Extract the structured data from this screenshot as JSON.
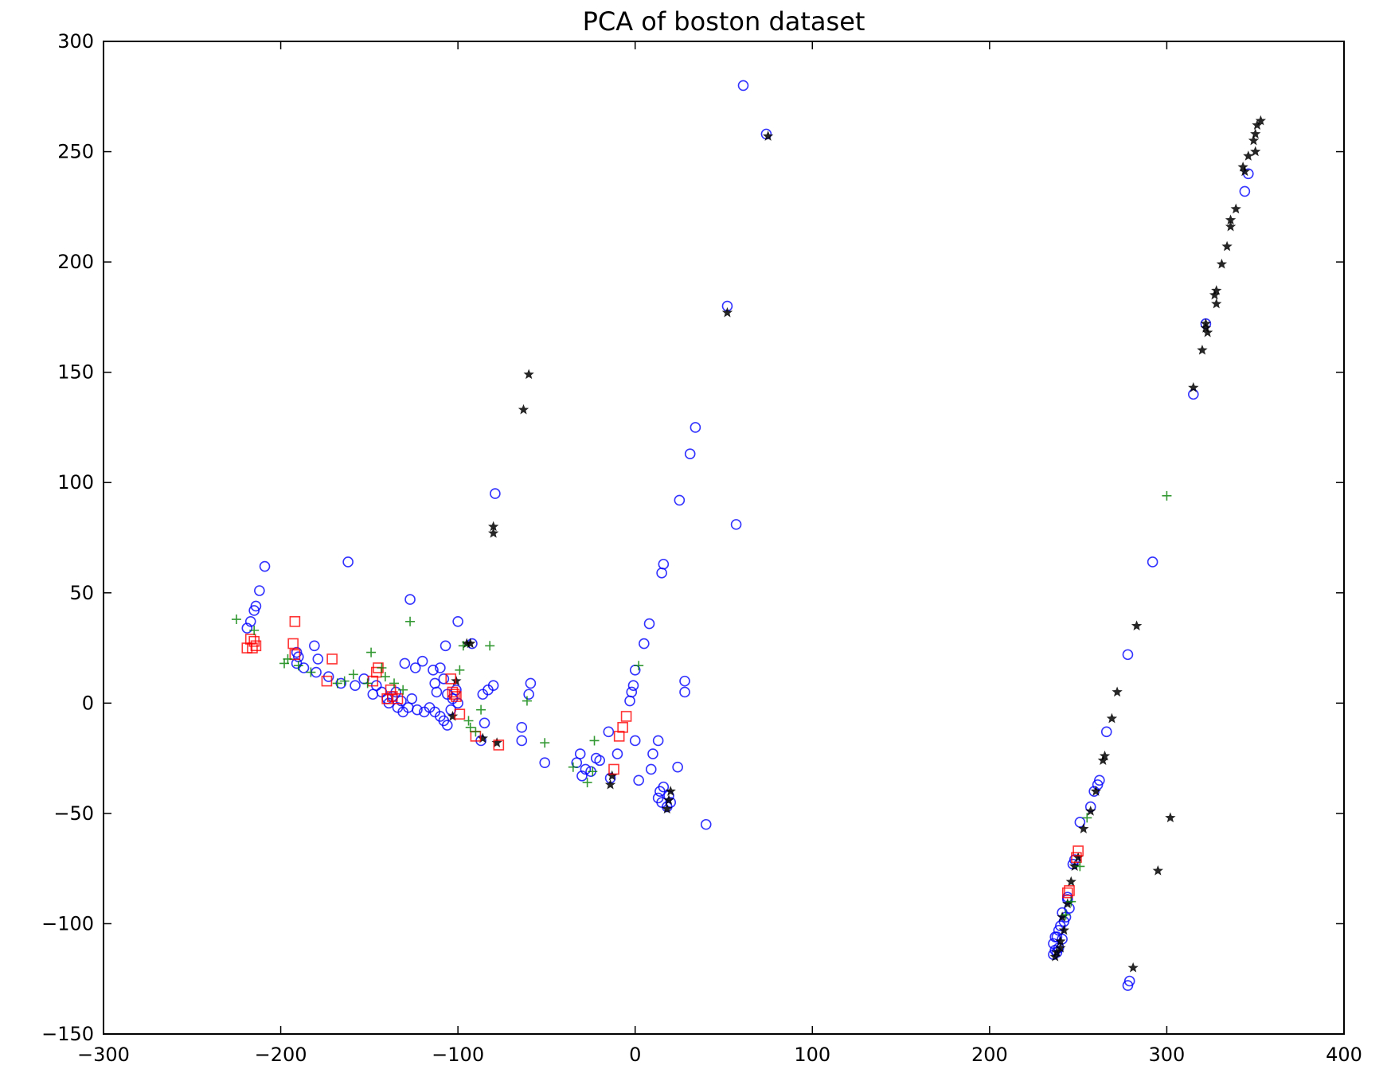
{
  "chart_data": {
    "type": "scatter",
    "title": "PCA of boston dataset",
    "xlabel": "",
    "ylabel": "",
    "xlim": [
      -300,
      400
    ],
    "ylim": [
      -150,
      300
    ],
    "xticks": [
      -300,
      -200,
      -100,
      0,
      100,
      200,
      300,
      400
    ],
    "yticks": [
      -150,
      -100,
      -50,
      0,
      50,
      100,
      150,
      200,
      250,
      300
    ],
    "xtick_labels": [
      "−300",
      "−200",
      "−100",
      "0",
      "100",
      "200",
      "300",
      "400"
    ],
    "ytick_labels": [
      "−150",
      "−100",
      "−50",
      "0",
      "50",
      "100",
      "150",
      "200",
      "250",
      "300"
    ],
    "grid": false,
    "legend": "none",
    "series": [
      {
        "marker": "circle",
        "color": "#0000ff",
        "points": [
          [
            61,
            280
          ],
          [
            74,
            258
          ],
          [
            52,
            180
          ],
          [
            34,
            125
          ],
          [
            31,
            113
          ],
          [
            25,
            92
          ],
          [
            57,
            81
          ],
          [
            16,
            63
          ],
          [
            15,
            59
          ],
          [
            8,
            36
          ],
          [
            5,
            27
          ],
          [
            0,
            15
          ],
          [
            -1,
            8
          ],
          [
            -2,
            5
          ],
          [
            -3,
            1
          ],
          [
            28,
            10
          ],
          [
            28,
            5
          ],
          [
            0,
            -17
          ],
          [
            -10,
            -23
          ],
          [
            -15,
            -13
          ],
          [
            13,
            -17
          ],
          [
            10,
            -23
          ],
          [
            9,
            -30
          ],
          [
            24,
            -29
          ],
          [
            2,
            -35
          ],
          [
            14,
            -40
          ],
          [
            13,
            -43
          ],
          [
            15,
            -45
          ],
          [
            18,
            -47
          ],
          [
            20,
            -45
          ],
          [
            40,
            -55
          ],
          [
            16,
            -38
          ],
          [
            19,
            -42
          ],
          [
            -79,
            95
          ],
          [
            -80,
            8
          ],
          [
            -83,
            6
          ],
          [
            -86,
            4
          ],
          [
            -85,
            -9
          ],
          [
            -87,
            -17
          ],
          [
            -59,
            9
          ],
          [
            -60,
            4
          ],
          [
            -64,
            -11
          ],
          [
            -64,
            -17
          ],
          [
            -51,
            -27
          ],
          [
            -33,
            -27
          ],
          [
            -31,
            -23
          ],
          [
            -28,
            -30
          ],
          [
            -30,
            -33
          ],
          [
            -25,
            -31
          ],
          [
            -22,
            -25
          ],
          [
            -14,
            -34
          ],
          [
            -20,
            -26
          ],
          [
            -100,
            37
          ],
          [
            -107,
            26
          ],
          [
            -92,
            27
          ],
          [
            -209,
            62
          ],
          [
            -162,
            64
          ],
          [
            -127,
            47
          ],
          [
            -212,
            51
          ],
          [
            -214,
            44
          ],
          [
            -215,
            42
          ],
          [
            -217,
            37
          ],
          [
            -219,
            34
          ],
          [
            -191,
            23
          ],
          [
            -190,
            21
          ],
          [
            -191,
            18
          ],
          [
            -187,
            16
          ],
          [
            -181,
            26
          ],
          [
            -179,
            20
          ],
          [
            -180,
            14
          ],
          [
            -173,
            12
          ],
          [
            -166,
            9
          ],
          [
            -158,
            8
          ],
          [
            -153,
            11
          ],
          [
            -148,
            4
          ],
          [
            -146,
            8
          ],
          [
            -143,
            5
          ],
          [
            -140,
            2
          ],
          [
            -139,
            0
          ],
          [
            -137,
            3
          ],
          [
            -135,
            5
          ],
          [
            -134,
            -2
          ],
          [
            -132,
            1
          ],
          [
            -130,
            18
          ],
          [
            -124,
            16
          ],
          [
            -120,
            19
          ],
          [
            -126,
            2
          ],
          [
            -123,
            -3
          ],
          [
            -119,
            -4
          ],
          [
            -116,
            -2
          ],
          [
            -114,
            15
          ],
          [
            -113,
            9
          ],
          [
            -112,
            5
          ],
          [
            -110,
            16
          ],
          [
            -108,
            11
          ],
          [
            -106,
            4
          ],
          [
            -113,
            -4
          ],
          [
            -110,
            -6
          ],
          [
            -108,
            -8
          ],
          [
            -106,
            -10
          ],
          [
            -104,
            -3
          ],
          [
            -103,
            2
          ],
          [
            -101,
            6
          ],
          [
            -100,
            0
          ],
          [
            -131,
            -4
          ],
          [
            -128,
            -2
          ],
          [
            315,
            140
          ],
          [
            322,
            172
          ],
          [
            344,
            232
          ],
          [
            346,
            240
          ],
          [
            292,
            64
          ],
          [
            278,
            22
          ],
          [
            266,
            -13
          ],
          [
            262,
            -35
          ],
          [
            261,
            -37
          ],
          [
            259,
            -40
          ],
          [
            257,
            -47
          ],
          [
            251,
            -54
          ],
          [
            247,
            -73
          ],
          [
            248,
            -71
          ],
          [
            244,
            -89
          ],
          [
            241,
            -95
          ],
          [
            242,
            -99
          ],
          [
            240,
            -101
          ],
          [
            239,
            -103
          ],
          [
            236,
            -109
          ],
          [
            237,
            -112
          ],
          [
            238,
            -113
          ],
          [
            241,
            -107
          ],
          [
            243,
            -97
          ],
          [
            245,
            -93
          ],
          [
            238,
            -106
          ],
          [
            239,
            -111
          ],
          [
            244,
            -88
          ],
          [
            279,
            -126
          ],
          [
            278,
            -128
          ],
          [
            236,
            -114
          ],
          [
            237,
            -106
          ]
        ]
      },
      {
        "marker": "star",
        "color": "#000000",
        "points": [
          [
            75,
            257
          ],
          [
            52,
            177
          ],
          [
            -60,
            149
          ],
          [
            -63,
            133
          ],
          [
            -80,
            80
          ],
          [
            -80,
            77
          ],
          [
            -95,
            27
          ],
          [
            -93,
            27
          ],
          [
            -101,
            10
          ],
          [
            -103,
            -6
          ],
          [
            -86,
            -16
          ],
          [
            -78,
            -18
          ],
          [
            -14,
            -37
          ],
          [
            -13,
            -33
          ],
          [
            18,
            -48
          ],
          [
            20,
            -40
          ],
          [
            19,
            -44
          ],
          [
            353,
            264
          ],
          [
            351,
            262
          ],
          [
            350,
            258
          ],
          [
            349,
            255
          ],
          [
            350,
            250
          ],
          [
            346,
            248
          ],
          [
            344,
            241
          ],
          [
            343,
            243
          ],
          [
            339,
            224
          ],
          [
            336,
            219
          ],
          [
            336,
            216
          ],
          [
            334,
            207
          ],
          [
            331,
            199
          ],
          [
            328,
            187
          ],
          [
            327,
            185
          ],
          [
            328,
            181
          ],
          [
            322,
            172
          ],
          [
            322,
            170
          ],
          [
            323,
            168
          ],
          [
            320,
            160
          ],
          [
            315,
            143
          ],
          [
            283,
            35
          ],
          [
            272,
            5
          ],
          [
            269,
            -7
          ],
          [
            265,
            -24
          ],
          [
            264,
            -26
          ],
          [
            260,
            -40
          ],
          [
            257,
            -49
          ],
          [
            253,
            -57
          ],
          [
            250,
            -70
          ],
          [
            248,
            -74
          ],
          [
            246,
            -81
          ],
          [
            244,
            -91
          ],
          [
            241,
            -97
          ],
          [
            242,
            -103
          ],
          [
            240,
            -108
          ],
          [
            238,
            -113
          ],
          [
            237,
            -115
          ],
          [
            240,
            -111
          ],
          [
            302,
            -52
          ],
          [
            295,
            -76
          ],
          [
            281,
            -120
          ]
        ]
      },
      {
        "marker": "square",
        "color": "#ff0000",
        "points": [
          [
            -192,
            37
          ],
          [
            -219,
            25
          ],
          [
            -216,
            25
          ],
          [
            -215,
            28
          ],
          [
            -217,
            29
          ],
          [
            -214,
            26
          ],
          [
            -193,
            27
          ],
          [
            -192,
            22
          ],
          [
            -171,
            20
          ],
          [
            -174,
            10
          ],
          [
            -148,
            10
          ],
          [
            -146,
            14
          ],
          [
            -145,
            16
          ],
          [
            -138,
            6
          ],
          [
            -137,
            3
          ],
          [
            -140,
            2
          ],
          [
            -134,
            2
          ],
          [
            -104,
            11
          ],
          [
            -103,
            5
          ],
          [
            -102,
            4
          ],
          [
            -101,
            3
          ],
          [
            -99,
            -5
          ],
          [
            -90,
            -15
          ],
          [
            -77,
            -19
          ],
          [
            -12,
            -30
          ],
          [
            -9,
            -15
          ],
          [
            -7,
            -11
          ],
          [
            -5,
            -6
          ],
          [
            250,
            -67
          ],
          [
            249,
            -70
          ],
          [
            245,
            -85
          ],
          [
            244,
            -86
          ]
        ]
      },
      {
        "marker": "plus",
        "color": "#008000",
        "points": [
          [
            -225,
            38
          ],
          [
            -215,
            33
          ],
          [
            -127,
            37
          ],
          [
            -196,
            20
          ],
          [
            -198,
            18
          ],
          [
            -190,
            17
          ],
          [
            -183,
            14
          ],
          [
            -168,
            9
          ],
          [
            -164,
            10
          ],
          [
            -159,
            13
          ],
          [
            -151,
            9
          ],
          [
            -149,
            23
          ],
          [
            -143,
            16
          ],
          [
            -141,
            12
          ],
          [
            -136,
            9
          ],
          [
            -131,
            6
          ],
          [
            -99,
            15
          ],
          [
            -97,
            26
          ],
          [
            -82,
            26
          ],
          [
            -94,
            -8
          ],
          [
            -93,
            -11
          ],
          [
            -90,
            -13
          ],
          [
            -87,
            -3
          ],
          [
            -61,
            1
          ],
          [
            -51,
            -18
          ],
          [
            -35,
            -29
          ],
          [
            -27,
            -36
          ],
          [
            -24,
            -31
          ],
          [
            -23,
            -17
          ],
          [
            2,
            17
          ],
          [
            300,
            94
          ],
          [
            251,
            -74
          ],
          [
            255,
            -52
          ],
          [
            246,
            -90
          ],
          [
            243,
            -96
          ]
        ]
      }
    ]
  }
}
